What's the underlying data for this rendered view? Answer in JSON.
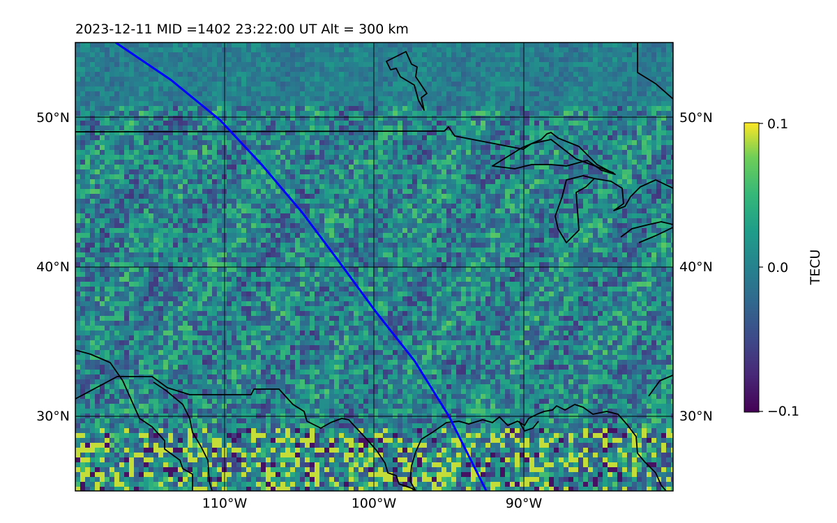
{
  "title": "2023-12-11  MID =1402    23:22:00  UT  Alt = 300 km",
  "map": {
    "lat_range": [
      25,
      55
    ],
    "lon_range": [
      -120,
      -80
    ],
    "grid_lats": [
      30,
      40,
      50
    ],
    "grid_lons": [
      -110,
      -100,
      -90
    ],
    "lat_tick_labels": [
      "50°N",
      "40°N",
      "30°N"
    ],
    "lon_tick_labels": [
      "110°W",
      "100°W",
      "90°W"
    ],
    "track_color": "#0000ff",
    "track": [
      {
        "lon": -117.3,
        "lat": 55.0
      },
      {
        "lon": -113.6,
        "lat": 52.5
      },
      {
        "lon": -110.3,
        "lat": 49.8
      },
      {
        "lon": -107.5,
        "lat": 46.8
      },
      {
        "lon": -104.8,
        "lat": 43.6
      },
      {
        "lon": -102.4,
        "lat": 40.4
      },
      {
        "lon": -99.9,
        "lat": 37.0
      },
      {
        "lon": -97.3,
        "lat": 33.7
      },
      {
        "lon": -95.0,
        "lat": 30.0
      },
      {
        "lon": -92.5,
        "lat": 25.0
      }
    ]
  },
  "colorbar": {
    "label": "TECU",
    "min": -0.1,
    "max": 0.1,
    "tick_labels": [
      "0.1",
      "0.0",
      "−0.1"
    ],
    "colormap": "viridis"
  }
}
